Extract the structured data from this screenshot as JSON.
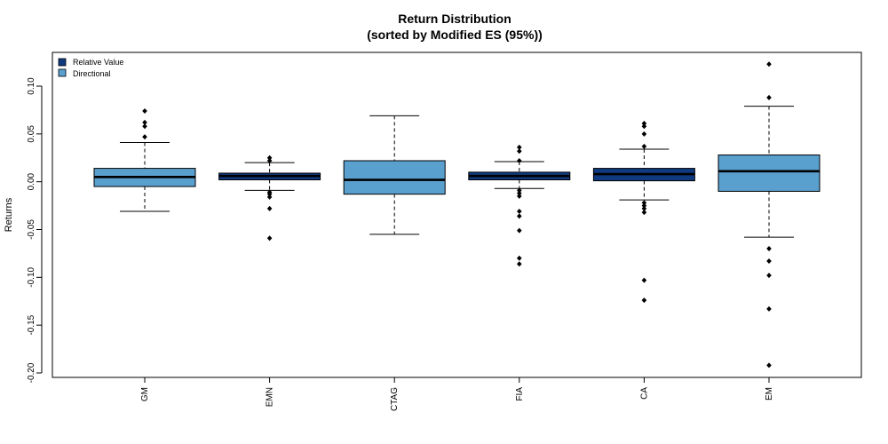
{
  "chart_data": {
    "type": "box",
    "title": "Return Distribution",
    "subtitle": "(sorted by Modified ES (95%))",
    "xlabel": "",
    "ylabel": "Returns",
    "ylim": [
      -0.205,
      0.135
    ],
    "yticks": [
      0.1,
      0.05,
      0.0,
      -0.05,
      -0.1,
      -0.15,
      -0.2
    ],
    "ytick_labels": [
      "0.10",
      "0.05",
      "0.00",
      "-0.05",
      "-0.10",
      "-0.15",
      "-0.20"
    ],
    "grid": false,
    "legend_position": "top-left",
    "legend": [
      {
        "label": "Relative Value",
        "color": "#0f3a80"
      },
      {
        "label": "Directional",
        "color": "#5aa0cf"
      }
    ],
    "categories": [
      "GM",
      "EMN",
      "CTAG",
      "FIA",
      "CA",
      "EM"
    ],
    "boxes": [
      {
        "name": "GM",
        "group": "Directional",
        "whisker_low": -0.031,
        "q1": -0.005,
        "median": 0.005,
        "q3": 0.014,
        "whisker_high": 0.041,
        "outliers": [
          0.074,
          0.062,
          0.058,
          0.047
        ]
      },
      {
        "name": "EMN",
        "group": "Relative Value",
        "whisker_low": -0.009,
        "q1": 0.002,
        "median": 0.006,
        "q3": 0.009,
        "whisker_high": 0.02,
        "outliers": [
          0.025,
          0.022,
          -0.011,
          -0.013,
          -0.016,
          -0.028,
          -0.059
        ]
      },
      {
        "name": "CTAG",
        "group": "Directional",
        "whisker_low": -0.055,
        "q1": -0.013,
        "median": 0.002,
        "q3": 0.022,
        "whisker_high": 0.069,
        "outliers": []
      },
      {
        "name": "FIA",
        "group": "Relative Value",
        "whisker_low": -0.007,
        "q1": 0.002,
        "median": 0.006,
        "q3": 0.01,
        "whisker_high": 0.021,
        "outliers": [
          0.036,
          0.032,
          0.022,
          -0.009,
          -0.012,
          -0.015,
          -0.031,
          -0.036,
          -0.051,
          -0.08,
          -0.086
        ]
      },
      {
        "name": "CA",
        "group": "Relative Value",
        "whisker_low": -0.019,
        "q1": 0.001,
        "median": 0.008,
        "q3": 0.014,
        "whisker_high": 0.034,
        "outliers": [
          0.061,
          0.058,
          0.05,
          0.037,
          -0.022,
          -0.025,
          -0.028,
          -0.032,
          -0.103,
          -0.124
        ]
      },
      {
        "name": "EM",
        "group": "Directional",
        "whisker_low": -0.058,
        "q1": -0.01,
        "median": 0.011,
        "q3": 0.028,
        "whisker_high": 0.079,
        "outliers": [
          0.123,
          0.088,
          -0.07,
          -0.083,
          -0.098,
          -0.133,
          -0.192
        ]
      }
    ]
  }
}
